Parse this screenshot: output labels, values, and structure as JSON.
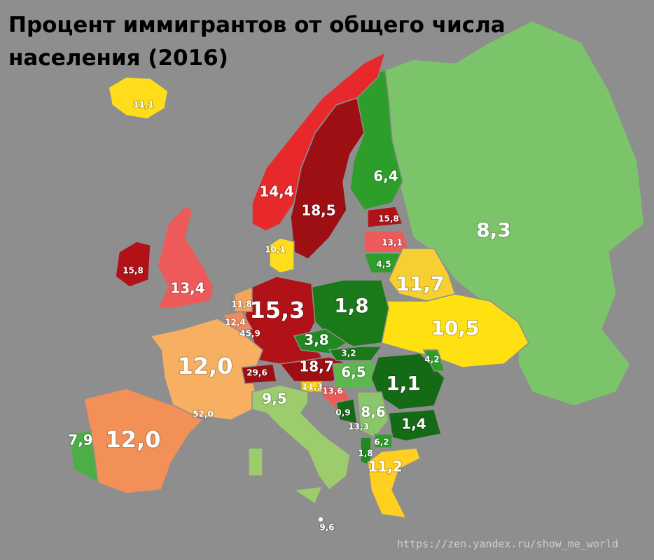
{
  "title": [
    "Процент иммигрантов от общего числа",
    "населения (2016)"
  ],
  "regions": [
    {
      "label": "11,1"
    },
    {
      "label": "14,4"
    },
    {
      "label": "18,5"
    },
    {
      "label": "6,4"
    },
    {
      "label": "8,3"
    },
    {
      "label": "15,8"
    },
    {
      "label": "13,1"
    },
    {
      "label": "4,5"
    },
    {
      "label": "10,1"
    },
    {
      "label": "15,8"
    },
    {
      "label": "13,4"
    },
    {
      "label": "11,7"
    },
    {
      "label": "11,8"
    },
    {
      "label": "15,3"
    },
    {
      "label": "1,8"
    },
    {
      "label": "12,4"
    },
    {
      "label": "45,9"
    },
    {
      "label": "10,5"
    },
    {
      "label": "3,8"
    },
    {
      "label": "12,0"
    },
    {
      "label": "3,2"
    },
    {
      "label": "18,7"
    },
    {
      "label": "29,6"
    },
    {
      "label": "6,5"
    },
    {
      "label": "4,2"
    },
    {
      "label": "1,1"
    },
    {
      "label": "11,3"
    },
    {
      "label": "13,6"
    },
    {
      "label": "0,9"
    },
    {
      "label": "8,6"
    },
    {
      "label": "1,4"
    },
    {
      "label": "13,3"
    },
    {
      "label": "52,0"
    },
    {
      "label": "9,5"
    },
    {
      "label": "7,9"
    },
    {
      "label": "12,0"
    },
    {
      "label": "6,2"
    },
    {
      "label": "1,8"
    },
    {
      "label": "11,2"
    },
    {
      "label": "9,6"
    }
  ],
  "source": "https://zen.yandex.ru/show_me_world"
}
